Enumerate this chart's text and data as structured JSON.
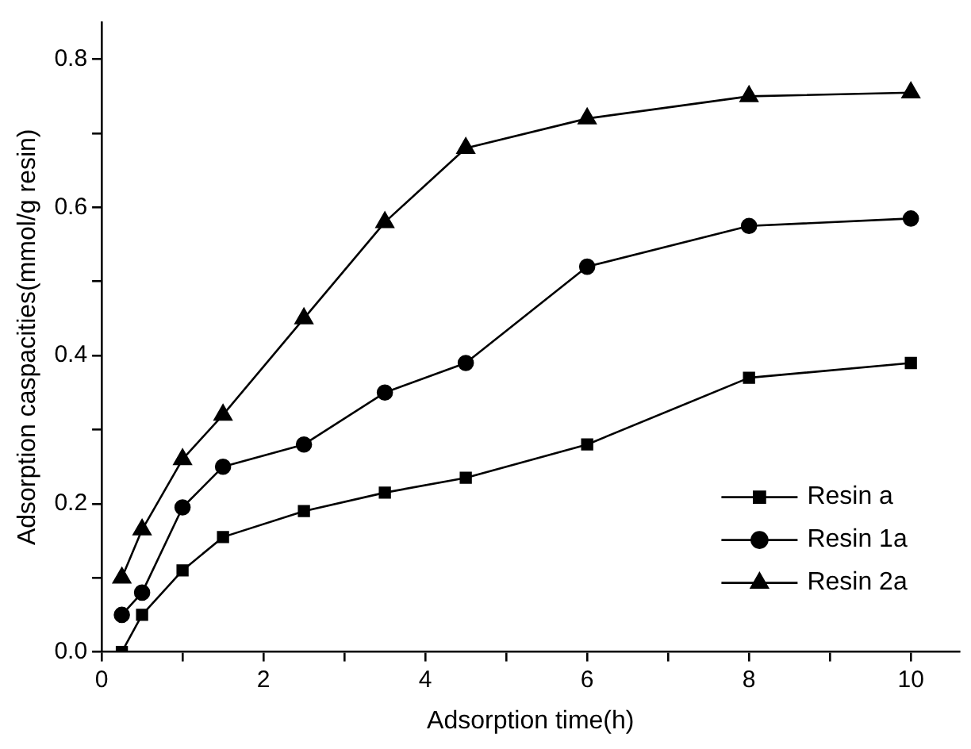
{
  "chart_data": {
    "type": "line",
    "xlabel": "Adsorption time(h)",
    "ylabel": "Adsorption caspacities(mmol/g resin)",
    "xlim": [
      0,
      10.6
    ],
    "ylim": [
      0,
      0.85
    ],
    "xticks": [
      0,
      {
        "value": 1,
        "label": null
      },
      2,
      {
        "value": 3,
        "label": null
      },
      4,
      {
        "value": 5,
        "label": null
      },
      6,
      {
        "value": 7,
        "label": null
      },
      8,
      {
        "value": 9,
        "label": null
      },
      10
    ],
    "yticks": [
      {
        "value": 0,
        "label": "0.0"
      },
      {
        "value": 0.1,
        "label": null
      },
      0.2,
      {
        "value": 0.3,
        "label": null
      },
      0.4,
      {
        "value": 0.5,
        "label": null
      },
      0.6,
      {
        "value": 0.7,
        "label": null
      },
      0.8
    ],
    "grid": false,
    "legend": "bottom right",
    "line_style": "solid",
    "series": [
      {
        "name": "Resin a",
        "color": "#000000",
        "marker": "square",
        "x": [
          0.25,
          0.5,
          1,
          1.5,
          2.5,
          3.5,
          4.5,
          6,
          8,
          10
        ],
        "values": [
          0,
          0.05,
          0.11,
          0.155,
          0.19,
          0.215,
          0.235,
          0.28,
          0.37,
          0.39
        ]
      },
      {
        "name": "Resin 1a",
        "color": "#000000",
        "marker": "circle",
        "x": [
          0.25,
          0.5,
          1,
          1.5,
          2.5,
          3.5,
          4.5,
          6,
          8,
          10
        ],
        "values": [
          0.05,
          0.08,
          0.195,
          0.25,
          0.28,
          0.35,
          0.39,
          0.52,
          0.575,
          0.585
        ]
      },
      {
        "name": "Resin 2a",
        "color": "#000000",
        "marker": "triangle",
        "x": [
          0.25,
          0.5,
          1,
          1.5,
          2.5,
          3.5,
          4.5,
          6,
          8,
          10
        ],
        "values": [
          0.1,
          0.165,
          0.26,
          0.32,
          0.45,
          0.58,
          0.68,
          0.72,
          0.75,
          0.755
        ]
      }
    ]
  }
}
